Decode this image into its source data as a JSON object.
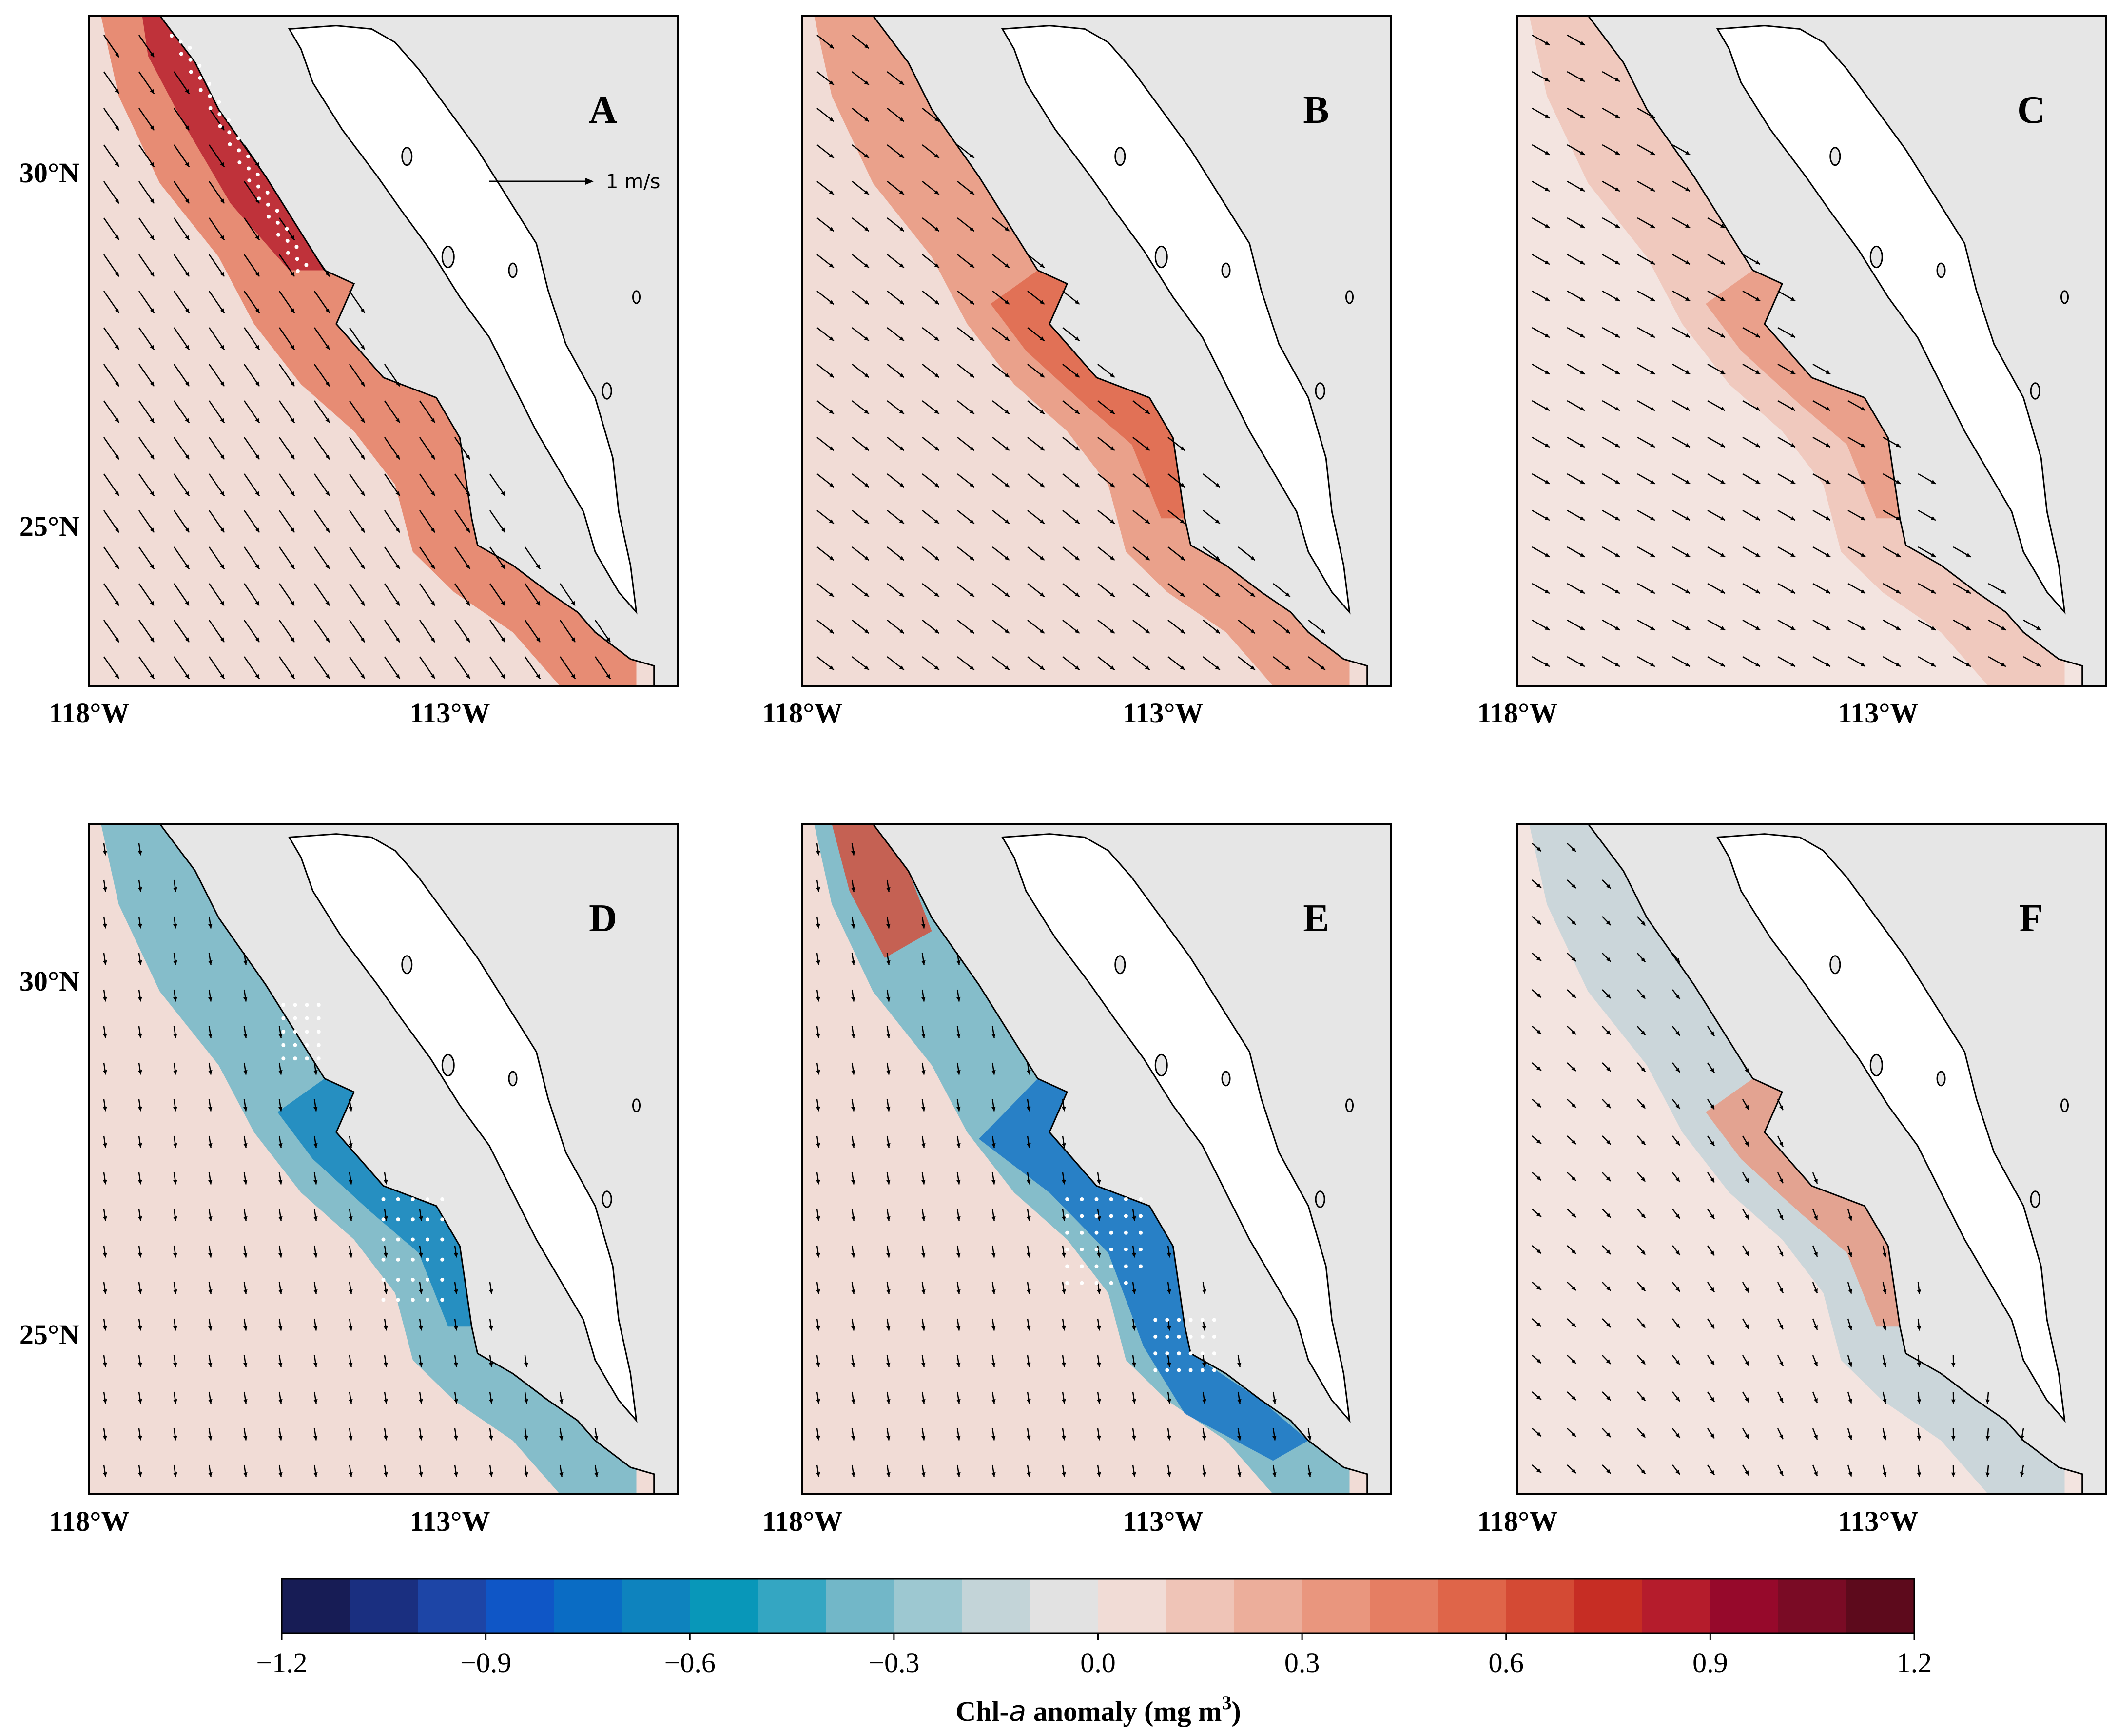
{
  "panels": [
    {
      "label": "A",
      "anomaly": "pos-strong",
      "wind": "nw-strong",
      "stipple": "north",
      "ref_label": "1 m/s"
    },
    {
      "label": "B",
      "anomaly": "pos-mid",
      "wind": "nw-mid",
      "stipple": "none"
    },
    {
      "label": "C",
      "anomaly": "pos-weak",
      "wind": "w-mid",
      "stipple": "none"
    },
    {
      "label": "D",
      "anomaly": "neg-mid",
      "wind": "n-weak",
      "stipple": "central"
    },
    {
      "label": "E",
      "anomaly": "mixed",
      "wind": "n-weak",
      "stipple": "central-south"
    },
    {
      "label": "F",
      "anomaly": "weak",
      "wind": "mixed-weak",
      "stipple": "none"
    }
  ],
  "axes": {
    "lat_ticks": [
      "30°N",
      "25°N"
    ],
    "lon_ticks": [
      "118°W",
      "113°W"
    ]
  },
  "colorbar": {
    "min": -1.2,
    "max": 1.2,
    "step": 0.1,
    "tick_labels": [
      "−1.2",
      "−0.9",
      "−0.6",
      "−0.3",
      "0.0",
      "0.3",
      "0.6",
      "0.9",
      "1.2"
    ],
    "title_prefix": "Chl-",
    "title_italic": "a",
    "title_suffix": " anomaly (mg m",
    "title_sup": "3",
    "title_end": ")",
    "colors": [
      "#171c55",
      "#1a2f80",
      "#1d45a6",
      "#0f56c6",
      "#0a6cc4",
      "#0e83be",
      "#0897b9",
      "#34a6c2",
      "#72b7c8",
      "#9dc8d1",
      "#c3d4d8",
      "#e2e2e2",
      "#f1dcd6",
      "#efc4b7",
      "#ecae9b",
      "#e9967e",
      "#e57e63",
      "#df6549",
      "#d44a34",
      "#c62d24",
      "#b51c2c",
      "#96092b",
      "#7a0b25",
      "#5d0a1c"
    ]
  }
}
